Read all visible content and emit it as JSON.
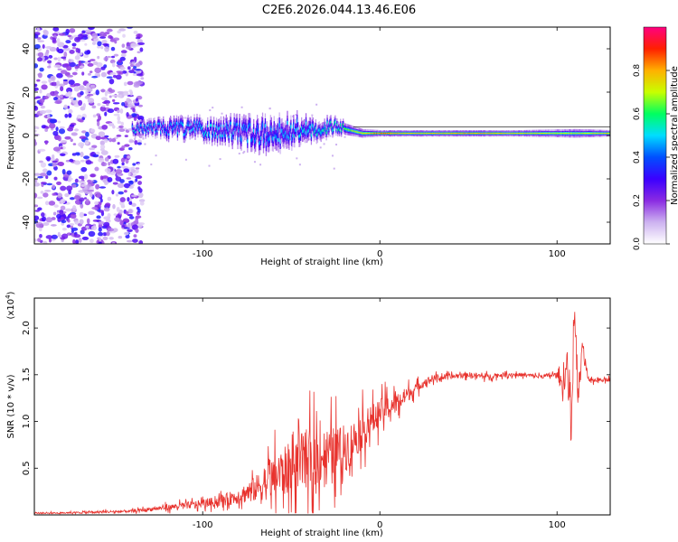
{
  "title": "C2E6.2026.044.13.46.E06",
  "chart_data": [
    {
      "type": "heatmap",
      "xlabel": "Height of straight line (km)",
      "ylabel": "Frequency (Hz)",
      "xlim": [
        -195,
        130
      ],
      "ylim": [
        -50,
        50
      ],
      "xticks": [
        -100,
        0,
        100
      ],
      "xtick_labels": [
        "-100",
        "0",
        "100"
      ],
      "yticks": [
        -40,
        -20,
        0,
        20,
        40
      ],
      "ytick_labels": [
        "-40",
        "-20",
        "0",
        "20",
        "40"
      ],
      "colorbar": {
        "label": "Normalized spectral amplitude",
        "range": [
          0,
          1
        ],
        "ticks": [
          0.0,
          0.2,
          0.4,
          0.6,
          0.8
        ],
        "tick_labels": [
          "0.0",
          "0.2",
          "0.4",
          "0.6",
          "0.8"
        ],
        "stops": [
          "#ffffff",
          "#cdb2f0",
          "#8a2be2",
          "#3b00ff",
          "#0050ff",
          "#00ddff",
          "#00ff60",
          "#c8ff00",
          "#ffb000",
          "#ff2000",
          "#ff0080"
        ]
      },
      "noise_region": {
        "x_from": -195,
        "x_to": -140,
        "amplitude": 0.3
      },
      "ridge": [
        {
          "x": -140,
          "f": 3,
          "width": 5,
          "amp": 0.5
        },
        {
          "x": -120,
          "f": 3,
          "width": 7,
          "amp": 0.45
        },
        {
          "x": -100,
          "f": 3,
          "width": 8,
          "amp": 0.5
        },
        {
          "x": -80,
          "f": 2,
          "width": 10,
          "amp": 0.45
        },
        {
          "x": -60,
          "f": 0,
          "width": 12,
          "amp": 0.45
        },
        {
          "x": -45,
          "f": 3,
          "width": 10,
          "amp": 0.5
        },
        {
          "x": -25,
          "f": 4,
          "width": 6,
          "amp": 0.55
        },
        {
          "x": -10,
          "f": 1,
          "width": 4,
          "amp": 0.75
        },
        {
          "x": 0,
          "f": 1,
          "width": 3,
          "amp": 0.85
        },
        {
          "x": 20,
          "f": 1,
          "width": 3,
          "amp": 0.75
        },
        {
          "x": 50,
          "f": 1,
          "width": 3,
          "amp": 0.8
        },
        {
          "x": 80,
          "f": 1,
          "width": 3,
          "amp": 0.75
        },
        {
          "x": 110,
          "f": 1,
          "width": 4,
          "amp": 0.7
        },
        {
          "x": 130,
          "f": 1,
          "width": 3,
          "amp": 0.75
        }
      ]
    },
    {
      "type": "line",
      "xlabel": "Height of straight line (km)",
      "ylabel": "SNR (10 * v/v)",
      "scale_label": "(x10",
      "scale_exponent": "4",
      "scale_suffix": ")",
      "xlim": [
        -195,
        130
      ],
      "ylim": [
        0,
        2.32
      ],
      "xticks": [
        -100,
        0,
        100
      ],
      "xtick_labels": [
        "-100",
        "0",
        "100"
      ],
      "yticks": [
        0.5,
        1.0,
        1.5,
        2.0
      ],
      "ytick_labels": [
        "0.5",
        "1.0",
        "1.5",
        "2.0"
      ],
      "color": "#e8322d",
      "series": [
        {
          "name": "SNR",
          "x": [
            -195,
            -180,
            -160,
            -140,
            -130,
            -120,
            -110,
            -100,
            -90,
            -80,
            -70,
            -60,
            -50,
            -40,
            -30,
            -20,
            -15,
            -10,
            -5,
            0,
            5,
            10,
            15,
            20,
            25,
            30,
            40,
            50,
            60,
            70,
            80,
            90,
            100,
            103,
            106,
            108,
            110,
            112,
            114,
            118,
            122,
            126,
            130
          ],
          "y": [
            0.02,
            0.02,
            0.03,
            0.04,
            0.06,
            0.08,
            0.1,
            0.12,
            0.15,
            0.2,
            0.28,
            0.4,
            0.5,
            0.6,
            0.65,
            0.7,
            0.8,
            0.9,
            1.0,
            1.1,
            1.15,
            1.2,
            1.28,
            1.35,
            1.42,
            1.46,
            1.48,
            1.5,
            1.48,
            1.5,
            1.5,
            1.48,
            1.5,
            1.4,
            1.6,
            1.0,
            2.2,
            1.2,
            1.8,
            1.42,
            1.45,
            1.45,
            1.45
          ],
          "noise": [
            0.01,
            0.01,
            0.02,
            0.02,
            0.03,
            0.04,
            0.05,
            0.06,
            0.08,
            0.12,
            0.2,
            0.32,
            0.42,
            0.48,
            0.4,
            0.38,
            0.3,
            0.28,
            0.25,
            0.2,
            0.18,
            0.16,
            0.12,
            0.08,
            0.06,
            0.05,
            0.04,
            0.04,
            0.04,
            0.03,
            0.03,
            0.03,
            0.04,
            0.15,
            0.3,
            0.45,
            0.1,
            0.35,
            0.1,
            0.04,
            0.03,
            0.03,
            0.03
          ]
        }
      ]
    }
  ]
}
